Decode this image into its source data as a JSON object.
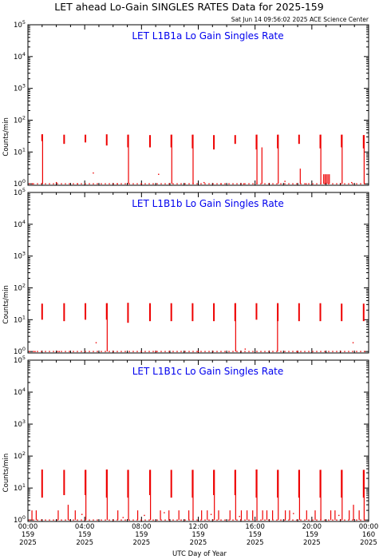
{
  "title": "LET ahead Lo-Gain SINGLES RATES Data for 2025-159",
  "timestamp": "Sat Jun 14 09:56:02 2025 ACE Science Center",
  "colors": {
    "data": "#ee0000",
    "panel_title": "#0000ee",
    "axis": "#000000"
  },
  "x_axis": {
    "label": "UTC Day of Year",
    "ticks": [
      {
        "time": "00:00",
        "day": "159",
        "year": "2025"
      },
      {
        "time": "04:00",
        "day": "159",
        "year": "2025"
      },
      {
        "time": "08:00",
        "day": "159",
        "year": "2025"
      },
      {
        "time": "12:00",
        "day": "159",
        "year": "2025"
      },
      {
        "time": "16:00",
        "day": "159",
        "year": "2025"
      },
      {
        "time": "20:00",
        "day": "159",
        "year": "2025"
      },
      {
        "time": "00:00",
        "day": "160",
        "year": "2025"
      }
    ]
  },
  "chart_data": [
    {
      "type": "scatter",
      "title": "LET L1B1a Lo Gain Singles Rate",
      "ylabel": "Counts/min",
      "yscale": "log",
      "ylim": [
        0.9,
        100000
      ],
      "xlim_hours": [
        0,
        24
      ],
      "xlabel": "UTC Day of Year",
      "baseline": 1,
      "bursts": [
        {
          "hour": 1.0,
          "lo": 22,
          "hi": 36
        },
        {
          "hour": 2.55,
          "lo": 18,
          "hi": 35
        },
        {
          "hour": 4.05,
          "lo": 20,
          "hi": 35
        },
        {
          "hour": 5.55,
          "lo": 16,
          "hi": 36
        },
        {
          "hour": 7.05,
          "lo": 14,
          "hi": 35
        },
        {
          "hour": 8.6,
          "lo": 14,
          "hi": 34
        },
        {
          "hour": 10.1,
          "lo": 14,
          "hi": 35
        },
        {
          "hour": 11.6,
          "lo": 13,
          "hi": 35
        },
        {
          "hour": 13.1,
          "lo": 12,
          "hi": 34
        },
        {
          "hour": 14.6,
          "lo": 18,
          "hi": 34
        },
        {
          "hour": 16.1,
          "lo": 12,
          "hi": 35
        },
        {
          "hour": 17.6,
          "lo": 13,
          "hi": 35
        },
        {
          "hour": 19.1,
          "lo": 18,
          "hi": 35
        },
        {
          "hour": 20.6,
          "lo": 13,
          "hi": 35
        },
        {
          "hour": 22.1,
          "lo": 14,
          "hi": 35
        },
        {
          "hour": 23.65,
          "lo": 13,
          "hi": 34
        }
      ],
      "spikes": [
        {
          "hour": 1.0,
          "lo": 1,
          "hi": 36
        },
        {
          "hour": 7.05,
          "lo": 1,
          "hi": 35
        },
        {
          "hour": 10.1,
          "lo": 1,
          "hi": 35
        },
        {
          "hour": 11.6,
          "lo": 1,
          "hi": 35
        },
        {
          "hour": 16.1,
          "lo": 1,
          "hi": 35
        },
        {
          "hour": 16.45,
          "lo": 1,
          "hi": 14
        },
        {
          "hour": 17.6,
          "lo": 1,
          "hi": 35
        },
        {
          "hour": 19.15,
          "lo": 1,
          "hi": 3
        },
        {
          "hour": 20.6,
          "lo": 1,
          "hi": 35
        },
        {
          "hour": 20.8,
          "lo": 1,
          "hi": 2
        },
        {
          "hour": 20.9,
          "lo": 1,
          "hi": 2
        },
        {
          "hour": 21.0,
          "lo": 1,
          "hi": 2
        },
        {
          "hour": 21.1,
          "lo": 1,
          "hi": 2
        },
        {
          "hour": 21.2,
          "lo": 1,
          "hi": 2
        },
        {
          "hour": 22.1,
          "lo": 1,
          "hi": 35
        },
        {
          "hour": 23.65,
          "lo": 1,
          "hi": 34
        }
      ],
      "isolated_points": [
        {
          "hour": 0.3,
          "value": 1
        },
        {
          "hour": 2.0,
          "value": 1.1
        },
        {
          "hour": 3.5,
          "value": 1
        },
        {
          "hour": 4.6,
          "value": 2.2
        },
        {
          "hour": 6.3,
          "value": 1
        },
        {
          "hour": 8.0,
          "value": 1
        },
        {
          "hour": 9.2,
          "value": 2
        },
        {
          "hour": 12.4,
          "value": 1.1
        },
        {
          "hour": 13.6,
          "value": 1
        },
        {
          "hour": 15.2,
          "value": 1
        },
        {
          "hour": 18.1,
          "value": 1.2
        },
        {
          "hour": 19.6,
          "value": 1
        },
        {
          "hour": 22.8,
          "value": 1.1
        }
      ]
    },
    {
      "type": "scatter",
      "title": "LET L1B1b Lo Gain Singles Rate",
      "ylabel": "Counts/min",
      "yscale": "log",
      "ylim": [
        0.9,
        100000
      ],
      "xlim_hours": [
        0,
        24
      ],
      "xlabel": "UTC Day of Year",
      "baseline": 1,
      "bursts": [
        {
          "hour": 1.0,
          "lo": 10,
          "hi": 32
        },
        {
          "hour": 2.55,
          "lo": 9,
          "hi": 33
        },
        {
          "hour": 4.05,
          "lo": 10,
          "hi": 33
        },
        {
          "hour": 5.55,
          "lo": 10,
          "hi": 33
        },
        {
          "hour": 7.05,
          "lo": 8,
          "hi": 34
        },
        {
          "hour": 8.6,
          "lo": 9,
          "hi": 33
        },
        {
          "hour": 10.1,
          "lo": 9,
          "hi": 33
        },
        {
          "hour": 11.6,
          "lo": 9,
          "hi": 33
        },
        {
          "hour": 13.1,
          "lo": 9,
          "hi": 33
        },
        {
          "hour": 14.6,
          "lo": 9,
          "hi": 33
        },
        {
          "hour": 16.1,
          "lo": 10,
          "hi": 33
        },
        {
          "hour": 17.6,
          "lo": 9,
          "hi": 33
        },
        {
          "hour": 19.1,
          "lo": 9,
          "hi": 33
        },
        {
          "hour": 20.6,
          "lo": 9,
          "hi": 33
        },
        {
          "hour": 22.1,
          "lo": 9,
          "hi": 32
        },
        {
          "hour": 23.65,
          "lo": 9,
          "hi": 32
        }
      ],
      "spikes": [
        {
          "hour": 5.55,
          "lo": 1,
          "hi": 33
        },
        {
          "hour": 14.6,
          "lo": 1,
          "hi": 33
        },
        {
          "hour": 17.55,
          "lo": 1,
          "hi": 33
        }
      ],
      "isolated_points": [
        {
          "hour": 0.5,
          "value": 1
        },
        {
          "hour": 2.2,
          "value": 1
        },
        {
          "hour": 4.8,
          "value": 1.9
        },
        {
          "hour": 9.0,
          "value": 1
        },
        {
          "hour": 12.0,
          "value": 1
        },
        {
          "hour": 15.3,
          "value": 1.2
        },
        {
          "hour": 19.0,
          "value": 1
        },
        {
          "hour": 22.9,
          "value": 1.9
        }
      ]
    },
    {
      "type": "scatter",
      "title": "LET L1B1c Lo Gain Singles Rate",
      "ylabel": "Counts/min",
      "yscale": "log",
      "ylim": [
        0.9,
        100000
      ],
      "xlim_hours": [
        0,
        24
      ],
      "xlabel": "UTC Day of Year",
      "baseline": 1,
      "bursts": [
        {
          "hour": 1.0,
          "lo": 5,
          "hi": 38
        },
        {
          "hour": 2.55,
          "lo": 6,
          "hi": 37
        },
        {
          "hour": 4.05,
          "lo": 6,
          "hi": 37
        },
        {
          "hour": 5.55,
          "lo": 5,
          "hi": 38
        },
        {
          "hour": 7.05,
          "lo": 5,
          "hi": 37
        },
        {
          "hour": 8.6,
          "lo": 6,
          "hi": 37
        },
        {
          "hour": 10.1,
          "lo": 5,
          "hi": 37
        },
        {
          "hour": 11.6,
          "lo": 5,
          "hi": 37
        },
        {
          "hour": 13.1,
          "lo": 6,
          "hi": 37
        },
        {
          "hour": 14.6,
          "lo": 6,
          "hi": 37
        },
        {
          "hour": 16.1,
          "lo": 5,
          "hi": 38
        },
        {
          "hour": 17.6,
          "lo": 5,
          "hi": 37
        },
        {
          "hour": 19.1,
          "lo": 5,
          "hi": 37
        },
        {
          "hour": 20.6,
          "lo": 5,
          "hi": 37
        },
        {
          "hour": 22.1,
          "lo": 5,
          "hi": 37
        },
        {
          "hour": 23.65,
          "lo": 5,
          "hi": 37
        }
      ],
      "spikes": [
        {
          "hour": 4.05,
          "lo": 1,
          "hi": 37
        },
        {
          "hour": 5.55,
          "lo": 1,
          "hi": 38
        },
        {
          "hour": 7.05,
          "lo": 1,
          "hi": 37
        },
        {
          "hour": 8.6,
          "lo": 1,
          "hi": 37
        },
        {
          "hour": 11.6,
          "lo": 1,
          "hi": 37
        },
        {
          "hour": 13.1,
          "lo": 1,
          "hi": 37
        },
        {
          "hour": 14.6,
          "lo": 1,
          "hi": 37
        },
        {
          "hour": 16.1,
          "lo": 1,
          "hi": 38
        },
        {
          "hour": 17.6,
          "lo": 1,
          "hi": 37
        },
        {
          "hour": 19.1,
          "lo": 1,
          "hi": 37
        },
        {
          "hour": 20.6,
          "lo": 1,
          "hi": 37
        },
        {
          "hour": 22.1,
          "lo": 1,
          "hi": 37
        },
        {
          "hour": 23.65,
          "lo": 1,
          "hi": 37
        },
        {
          "hour": 0.25,
          "lo": 1,
          "hi": 2
        },
        {
          "hour": 0.55,
          "lo": 1,
          "hi": 2
        },
        {
          "hour": 2.1,
          "lo": 1,
          "hi": 2
        },
        {
          "hour": 2.8,
          "lo": 1,
          "hi": 3
        },
        {
          "hour": 3.3,
          "lo": 1,
          "hi": 2
        },
        {
          "hour": 6.3,
          "lo": 1,
          "hi": 2
        },
        {
          "hour": 7.7,
          "lo": 1,
          "hi": 2
        },
        {
          "hour": 9.3,
          "lo": 1,
          "hi": 2
        },
        {
          "hour": 9.9,
          "lo": 1,
          "hi": 2
        },
        {
          "hour": 10.6,
          "lo": 1,
          "hi": 2
        },
        {
          "hour": 11.3,
          "lo": 1,
          "hi": 2
        },
        {
          "hour": 12.2,
          "lo": 1,
          "hi": 2
        },
        {
          "hour": 12.6,
          "lo": 1,
          "hi": 2
        },
        {
          "hour": 13.4,
          "lo": 1,
          "hi": 2
        },
        {
          "hour": 14.2,
          "lo": 1,
          "hi": 2
        },
        {
          "hour": 15.0,
          "lo": 1,
          "hi": 2
        },
        {
          "hour": 15.4,
          "lo": 1,
          "hi": 2
        },
        {
          "hour": 15.8,
          "lo": 1,
          "hi": 2
        },
        {
          "hour": 16.5,
          "lo": 1,
          "hi": 2
        },
        {
          "hour": 16.8,
          "lo": 1,
          "hi": 2
        },
        {
          "hour": 17.2,
          "lo": 1,
          "hi": 2
        },
        {
          "hour": 18.1,
          "lo": 1,
          "hi": 2
        },
        {
          "hour": 18.4,
          "lo": 1,
          "hi": 2
        },
        {
          "hour": 19.6,
          "lo": 1,
          "hi": 2
        },
        {
          "hour": 20.2,
          "lo": 1,
          "hi": 2
        },
        {
          "hour": 21.3,
          "lo": 1,
          "hi": 2
        },
        {
          "hour": 21.6,
          "lo": 1,
          "hi": 2
        },
        {
          "hour": 22.6,
          "lo": 1,
          "hi": 2
        },
        {
          "hour": 22.9,
          "lo": 1,
          "hi": 3
        },
        {
          "hour": 23.3,
          "lo": 1,
          "hi": 2
        }
      ],
      "isolated_points": [
        {
          "hour": 3.8,
          "value": 1.5
        },
        {
          "hour": 6.7,
          "value": 1.2
        },
        {
          "hour": 8.2,
          "value": 1.4
        },
        {
          "hour": 9.6,
          "value": 1.7
        },
        {
          "hour": 12.9,
          "value": 1.5
        },
        {
          "hour": 14.9,
          "value": 1.3
        },
        {
          "hour": 18.7,
          "value": 1.6
        },
        {
          "hour": 21.9,
          "value": 1.4
        }
      ]
    }
  ]
}
